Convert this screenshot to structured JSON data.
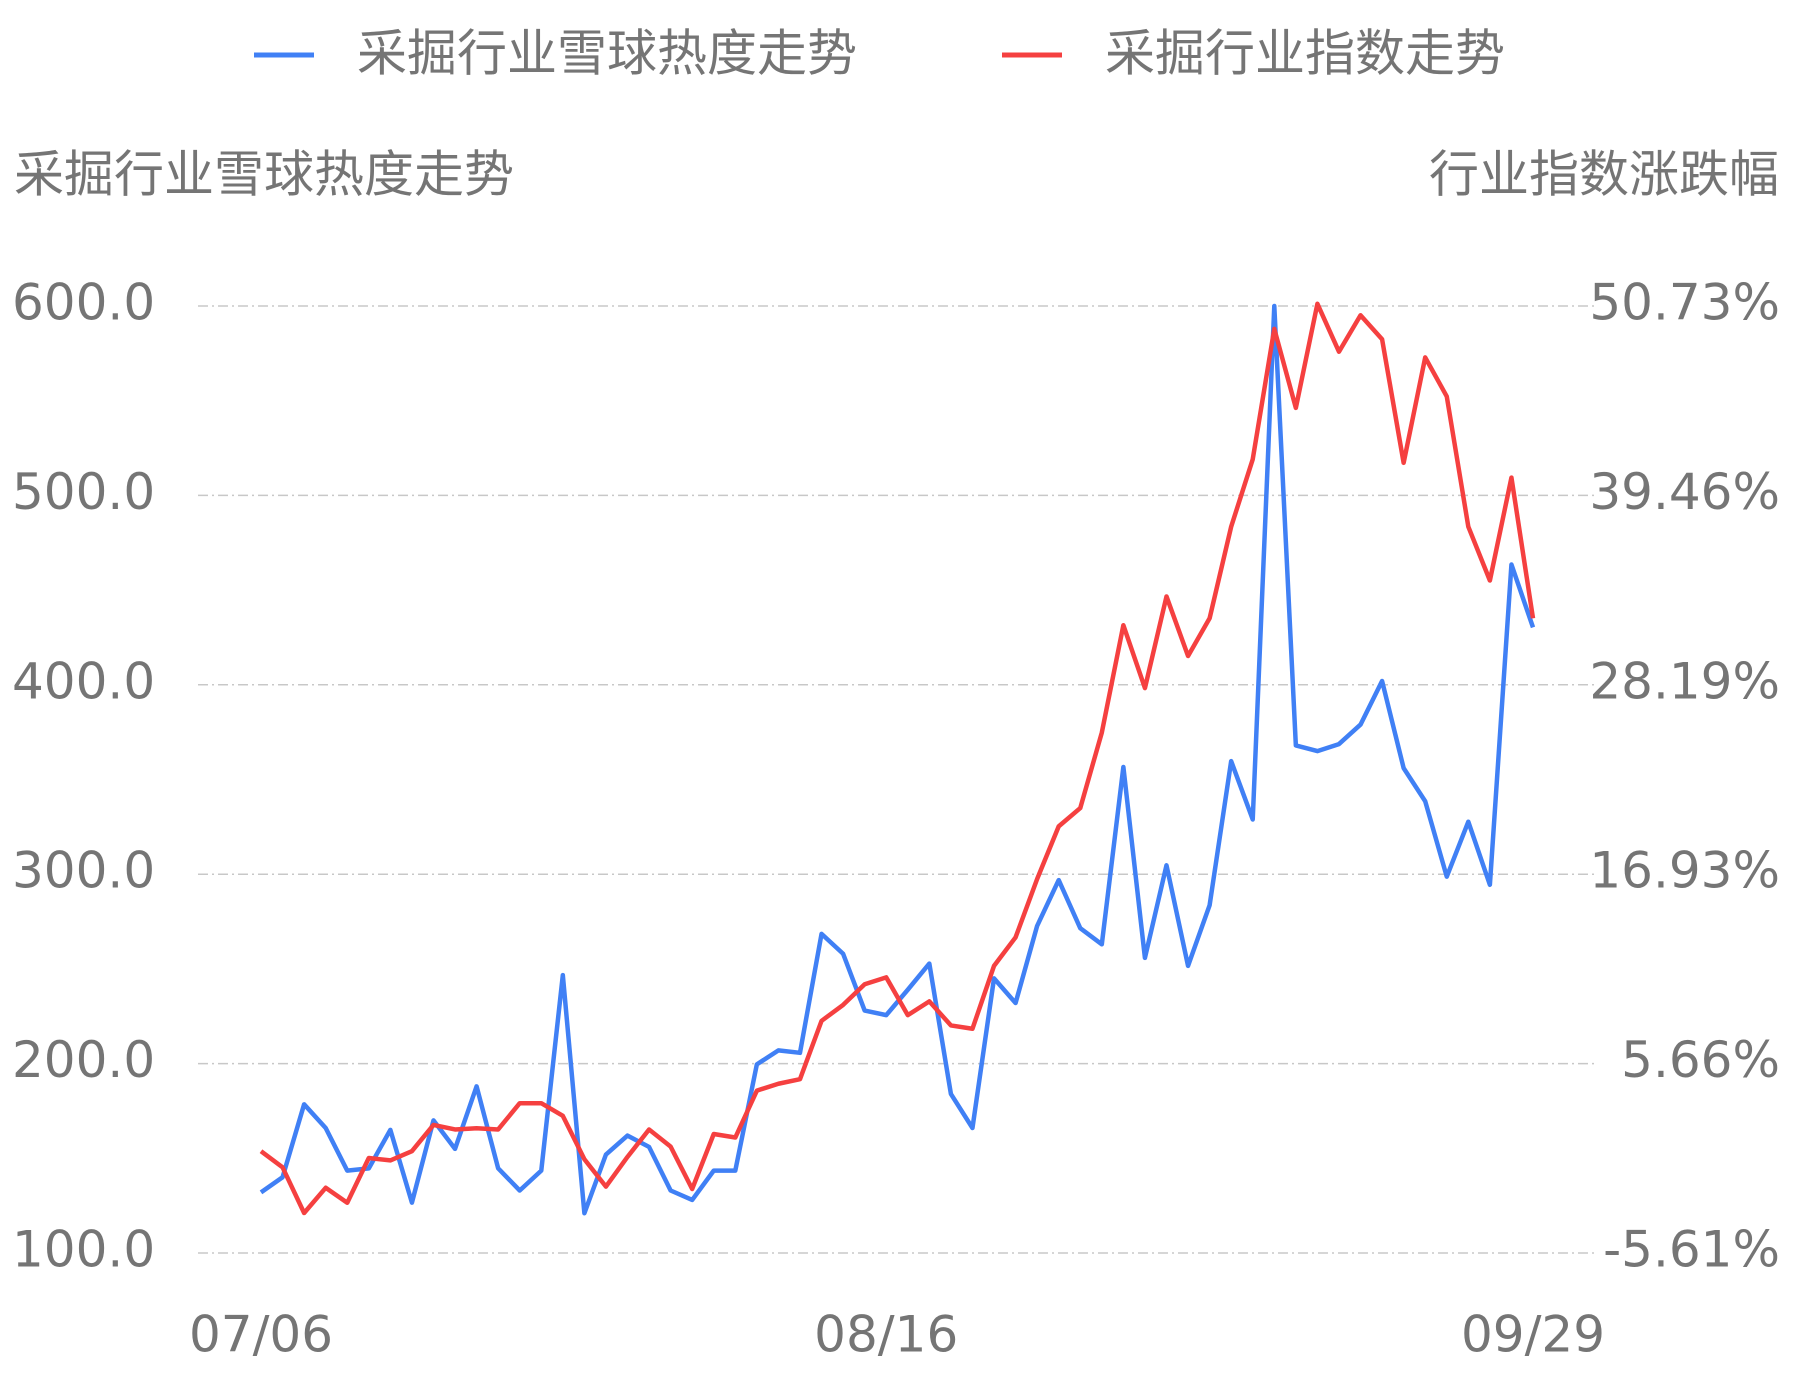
{
  "chart_data": {
    "type": "line",
    "y_title": "采掘行业雪球热度走势",
    "y2_title": "行业指数涨跌幅",
    "categories": [
      "07/06",
      null,
      null,
      null,
      null,
      null,
      null,
      null,
      null,
      null,
      null,
      null,
      null,
      null,
      null,
      null,
      null,
      null,
      null,
      null,
      null,
      null,
      null,
      null,
      null,
      null,
      null,
      null,
      null,
      "08/16",
      null,
      null,
      null,
      null,
      null,
      null,
      null,
      null,
      null,
      null,
      null,
      null,
      null,
      null,
      null,
      null,
      null,
      null,
      null,
      null,
      null,
      null,
      null,
      null,
      null,
      null,
      null,
      null,
      null,
      "09/29"
    ],
    "ylim": [
      100,
      600
    ],
    "yticks": [
      {
        "value": 100,
        "label": "100.0"
      },
      {
        "value": 200,
        "label": "200.0"
      },
      {
        "value": 300,
        "label": "300.0"
      },
      {
        "value": 400,
        "label": "400.0"
      },
      {
        "value": 500,
        "label": "500.0"
      },
      {
        "value": 600,
        "label": "600.0"
      }
    ],
    "y2lim": [
      -5.61,
      50.73
    ],
    "y2ticks": [
      {
        "value": -5.61,
        "label": "-5.61%"
      },
      {
        "value": 5.66,
        "label": "5.66%"
      },
      {
        "value": 16.93,
        "label": "16.93%"
      },
      {
        "value": 28.19,
        "label": "28.19%"
      },
      {
        "value": 39.46,
        "label": "39.46%"
      },
      {
        "value": 50.73,
        "label": "50.73%"
      }
    ],
    "grid": true,
    "series": [
      {
        "name": "采掘行业雪球热度走势",
        "color": "#4080f5",
        "values": [
          132,
          140,
          178.5,
          166,
          143.5,
          144.7,
          165,
          126.6,
          170,
          155,
          188,
          144.7,
          133,
          143.5,
          246.7,
          121,
          152,
          162,
          156,
          133,
          128,
          143.5,
          143.5,
          199.6,
          207,
          205.7,
          268.5,
          258,
          228,
          225.6,
          239,
          252.8,
          184,
          166,
          245,
          232,
          272.7,
          296.9,
          271.5,
          263,
          356.6,
          255.8,
          304.7,
          251.6,
          283.6,
          359.7,
          328.9,
          600,
          368,
          365,
          368.7,
          379,
          402,
          356,
          338.5,
          298.7,
          327.7,
          294.4,
          463.5,
          430.3
        ]
      },
      {
        "name": "采掘行业指数走势",
        "color": "#f54040",
        "axis": "y2",
        "values": [
          0.45,
          -0.51,
          -3.23,
          -1.73,
          -2.62,
          0.04,
          -0.1,
          0.45,
          2.01,
          1.74,
          1.81,
          1.74,
          3.3,
          3.3,
          2.55,
          -0.03,
          -1.66,
          0.11,
          1.74,
          0.72,
          -1.8,
          1.47,
          1.26,
          4.05,
          4.46,
          4.73,
          8.2,
          9.15,
          10.38,
          10.79,
          8.54,
          9.36,
          7.93,
          7.73,
          11.47,
          13.17,
          16.64,
          19.77,
          20.86,
          25.35,
          31.74,
          28.0,
          33.45,
          29.91,
          32.15,
          37.6,
          41.61,
          49.37,
          44.67,
          50.86,
          48.01,
          50.18,
          48.75,
          41.4,
          47.67,
          45.35,
          37.6,
          34.4,
          40.52,
          32.15
        ]
      }
    ]
  }
}
